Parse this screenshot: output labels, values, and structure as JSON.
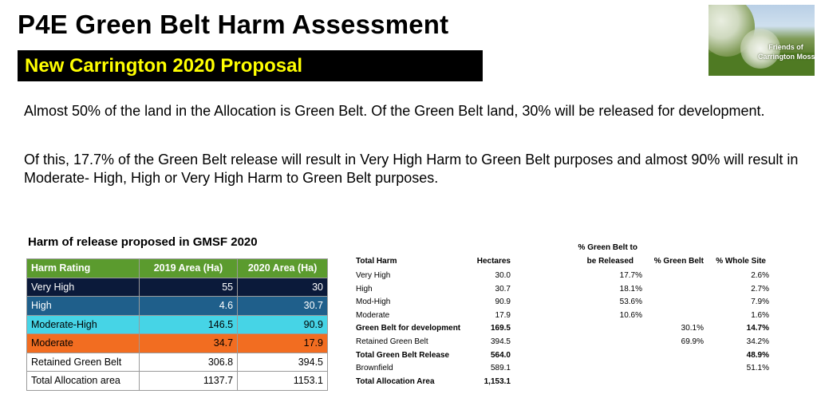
{
  "title": "P4E Green Belt Harm Assessment",
  "subtitle": "New Carrington 2020 Proposal",
  "logo": {
    "line1": "Friends of",
    "line2": "Carrington Moss"
  },
  "paragraphs": [
    "Almost 50% of the land in the Allocation is Green Belt.  Of the Green Belt land, 30% will be released for development.",
    "Of this, 17.7% of the Green Belt release will result in Very High Harm to Green Belt purposes and almost 90% will result in Moderate- High, High or Very High Harm to Green Belt purposes."
  ],
  "harm_table": {
    "heading": "Harm of release proposed in GMSF 2020",
    "headers": [
      "Harm Rating",
      "2019 Area (Ha)",
      "2020 Area (Ha)"
    ],
    "rows": [
      {
        "label": "Very High",
        "a2019": "55",
        "a2020": "30",
        "bg": "#0b1a3a",
        "fg": "#ffffff"
      },
      {
        "label": "High",
        "a2019": "4.6",
        "a2020": "30.7",
        "bg": "#1f5f8b",
        "fg": "#ffffff"
      },
      {
        "label": "Moderate-High",
        "a2019": "146.5",
        "a2020": "90.9",
        "bg": "#46d4e6",
        "fg": "#000000"
      },
      {
        "label": "Moderate",
        "a2019": "34.7",
        "a2020": "17.9",
        "bg": "#f26d21",
        "fg": "#000000"
      },
      {
        "label": "Retained Green Belt",
        "a2019": "306.8",
        "a2020": "394.5",
        "bg": "#ffffff",
        "fg": "#000000"
      },
      {
        "label": "Total Allocation area",
        "a2019": "1137.7",
        "a2020": "1153.1",
        "bg": "#ffffff",
        "fg": "#000000"
      }
    ],
    "header_color": "#5b9b2e"
  },
  "summary_table": {
    "header_line1": "% Green Belt to",
    "headers": [
      "Total Harm",
      "Hectares",
      "be Released",
      "% Green Belt",
      "% Whole Site"
    ],
    "rows": [
      {
        "label": "Very High",
        "hectares": "30.0",
        "gb_release": "17.7%",
        "gb": "",
        "whole": "2.6%",
        "bold": false
      },
      {
        "label": "High",
        "hectares": "30.7",
        "gb_release": "18.1%",
        "gb": "",
        "whole": "2.7%",
        "bold": false
      },
      {
        "label": "Mod-High",
        "hectares": "90.9",
        "gb_release": "53.6%",
        "gb": "",
        "whole": "7.9%",
        "bold": false
      },
      {
        "label": "Moderate",
        "hectares": "17.9",
        "gb_release": "10.6%",
        "gb": "",
        "whole": "1.6%",
        "bold": false
      },
      {
        "label": "Green Belt for development",
        "hectares": "169.5",
        "gb_release": "",
        "gb": "30.1%",
        "whole": "14.7%",
        "bold": true
      },
      {
        "label": "Retained Green Belt",
        "hectares": "394.5",
        "gb_release": "",
        "gb": "69.9%",
        "whole": "34.2%",
        "bold": false
      },
      {
        "label": "Total Green Belt Release",
        "hectares": "564.0",
        "gb_release": "",
        "gb": "",
        "whole": "48.9%",
        "bold": true
      },
      {
        "label": "Brownfield",
        "hectares": "589.1",
        "gb_release": "",
        "gb": "",
        "whole": "51.1%",
        "bold": false
      },
      {
        "label": "Total Allocation Area",
        "hectares": "1,153.1",
        "gb_release": "",
        "gb": "",
        "whole": "",
        "bold": true
      }
    ]
  }
}
